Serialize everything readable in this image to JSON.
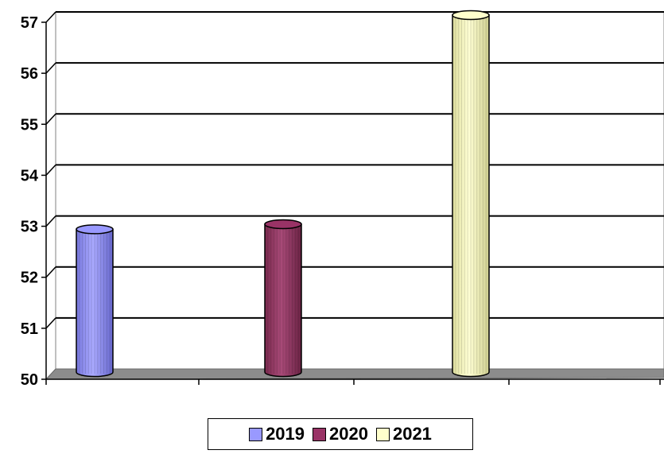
{
  "chart_data": {
    "type": "bar",
    "style": "3d-cylinder",
    "title": "",
    "xlabel": "",
    "ylabel": "",
    "ylim": [
      50,
      57
    ],
    "yticks": [
      "50",
      "51",
      "52",
      "53",
      "54",
      "55",
      "56",
      "57"
    ],
    "grid": true,
    "legend_position": "bottom",
    "series": [
      {
        "name": "2019",
        "values": [
          52.8
        ],
        "color": "#9999FF"
      },
      {
        "name": "2020",
        "values": [
          52.9
        ],
        "color": "#993366"
      },
      {
        "name": "2021",
        "values": [
          57.0
        ],
        "color": "#FFFFCC"
      }
    ]
  }
}
